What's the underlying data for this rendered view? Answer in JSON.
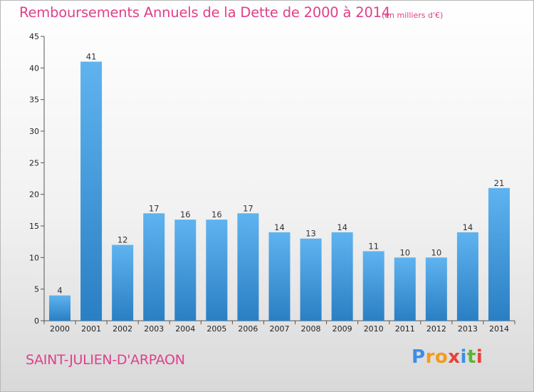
{
  "title": "Remboursements Annuels de la Dette de 2000 à 2014",
  "subtitle": "(en milliers d'€)",
  "town": "SAINT-JULIEN-D'ARPAON",
  "logo_letters": [
    "P",
    "r",
    "o",
    "x",
    "i",
    "t",
    "i"
  ],
  "logo_colors": [
    "#3a8ee6",
    "#f29b1e",
    "#f29b1e",
    "#e8423a",
    "#3a8ee6",
    "#5cb531",
    "#e8423a"
  ],
  "colors": {
    "accent": "#e0408a",
    "bar_top": "#5fb3ef",
    "bar_bottom": "#2a7fc4"
  },
  "chart_data": {
    "type": "bar",
    "categories": [
      "2000",
      "2001",
      "2002",
      "2003",
      "2004",
      "2005",
      "2006",
      "2007",
      "2008",
      "2009",
      "2010",
      "2011",
      "2012",
      "2013",
      "2014"
    ],
    "values": [
      4,
      41,
      12,
      17,
      16,
      16,
      17,
      14,
      13,
      14,
      11,
      10,
      10,
      14,
      21
    ],
    "ylim": [
      0,
      45
    ],
    "yticks": [
      0,
      5,
      10,
      15,
      20,
      25,
      30,
      35,
      40,
      45
    ],
    "grid": false,
    "data_labels": true
  }
}
